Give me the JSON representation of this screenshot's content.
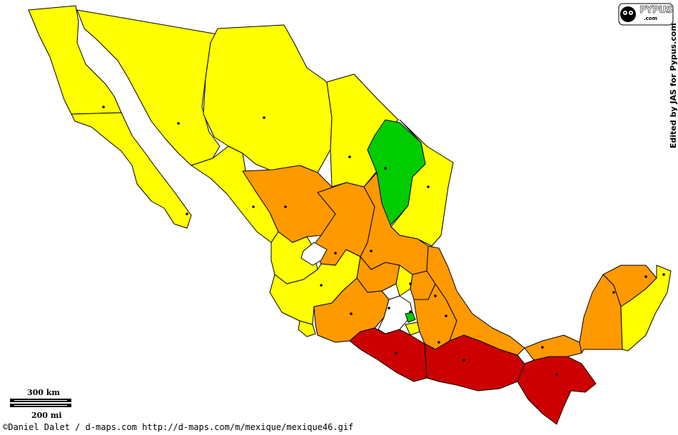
{
  "colors": {
    "yellow": "#ffff00",
    "orange": "#ff9900",
    "red": "#cc0000",
    "green": "#00cc00",
    "white": "#ffffff",
    "outline": "#000000"
  },
  "map": {
    "region": "Mexico",
    "state_fills_by_color_group": {
      "yellow": "northwest, north, west, north-east and south-east states",
      "orange": "central and eastern states",
      "red": "southern Pacific states",
      "green": "one north-eastern state",
      "white": "small uncoloured states"
    }
  },
  "logo": {
    "name": "PYPUS",
    "domain": ".com"
  },
  "edited_note": "Edited by JAS for Pypus.com",
  "scale": {
    "km": "300 km",
    "mi": "200 mi"
  },
  "credit": "©Daniel Dalet / d-maps.com  http://d-maps.com/m/mexique/mexique46.gif",
  "icons": {
    "logo": "pypus-face-icon"
  }
}
